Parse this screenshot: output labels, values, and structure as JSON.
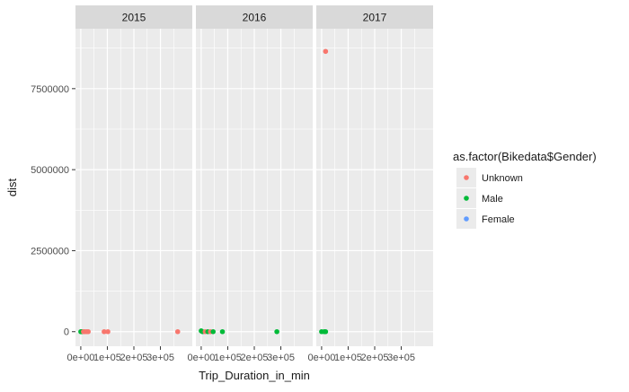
{
  "chart_data": {
    "type": "scatter",
    "xlabel": "Trip_Duration_in_min",
    "ylabel": "dist",
    "x_ticks": [
      0,
      100000,
      200000,
      300000
    ],
    "x_tick_labels": [
      "0e+00",
      "1e+05",
      "2e+05",
      "3e+05"
    ],
    "xlim": [
      -20000,
      420000
    ],
    "y_ticks": [
      0,
      2500000,
      5000000,
      7500000
    ],
    "y_tick_labels": [
      "0",
      "2500000",
      "5000000",
      "7500000"
    ],
    "ylim": [
      -450000,
      9350000
    ],
    "grid": true,
    "legend": {
      "title": "as.factor(Bikedata$Gender)",
      "position": "right",
      "entries": [
        {
          "label": "Unknown",
          "color": "#F8766D"
        },
        {
          "label": "Male",
          "color": "#00BA38"
        },
        {
          "label": "Female",
          "color": "#619CFF"
        }
      ]
    },
    "facets": [
      {
        "label": "2015",
        "points": [
          {
            "x": 0,
            "y": 0,
            "gender": "Male"
          },
          {
            "x": 2000,
            "y": 0,
            "gender": "Male"
          },
          {
            "x": 5000,
            "y": 0,
            "gender": "Male"
          },
          {
            "x": 10000,
            "y": 0,
            "gender": "Unknown"
          },
          {
            "x": 15000,
            "y": 0,
            "gender": "Unknown"
          },
          {
            "x": 22000,
            "y": 0,
            "gender": "Unknown"
          },
          {
            "x": 28000,
            "y": 0,
            "gender": "Unknown"
          },
          {
            "x": 88000,
            "y": 0,
            "gender": "Unknown"
          },
          {
            "x": 102000,
            "y": 0,
            "gender": "Unknown"
          },
          {
            "x": 365000,
            "y": 0,
            "gender": "Unknown"
          }
        ]
      },
      {
        "label": "2016",
        "points": [
          {
            "x": 0,
            "y": 25000,
            "gender": "Male"
          },
          {
            "x": 5000,
            "y": 0,
            "gender": "Male"
          },
          {
            "x": 15000,
            "y": 0,
            "gender": "Unknown"
          },
          {
            "x": 25000,
            "y": 0,
            "gender": "Male"
          },
          {
            "x": 35000,
            "y": 0,
            "gender": "Unknown"
          },
          {
            "x": 45000,
            "y": 0,
            "gender": "Male"
          },
          {
            "x": 80000,
            "y": 0,
            "gender": "Male"
          },
          {
            "x": 285000,
            "y": 0,
            "gender": "Male"
          }
        ]
      },
      {
        "label": "2017",
        "points": [
          {
            "x": 0,
            "y": 0,
            "gender": "Male"
          },
          {
            "x": 10000,
            "y": 0,
            "gender": "Male"
          },
          {
            "x": 15000,
            "y": 0,
            "gender": "Male"
          },
          {
            "x": 15000,
            "y": 8650000,
            "gender": "Unknown"
          }
        ]
      }
    ]
  }
}
